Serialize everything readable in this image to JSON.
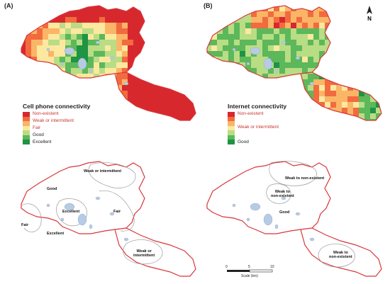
{
  "panels": {
    "a": {
      "label": "(A)"
    },
    "b": {
      "label": "(B)"
    }
  },
  "legend_cell": {
    "title": "Cell phone connectivity",
    "items": [
      "Non-existent",
      "Weak or intermittent",
      "Fair",
      "Good",
      "Excellent"
    ]
  },
  "legend_internet": {
    "title": "Internet connectivity",
    "items": [
      "Non-existent",
      "Weak or intermittent",
      "Good"
    ]
  },
  "cell_zones": {
    "weak_intermittent_top": "Weak or intermittent",
    "good": "Good",
    "excellent_center": "Excellent",
    "fair_right": "Fair",
    "fair_left": "Fair",
    "excellent_left": "Excellent",
    "weak_intermittent_se": "Weak or\nintermittent"
  },
  "internet_zones": {
    "weak_top": "Weak to non-existent",
    "weak_center": "Weak to\nnon-existent",
    "good": "Good",
    "weak_se": "Weak to\nnon-existent"
  },
  "north_arrow": {
    "label": "N"
  },
  "scale_bar": {
    "ticks": [
      "0",
      "5",
      "10"
    ],
    "label": "Scale (km)"
  },
  "colors": {
    "boundary": "#d9363a",
    "ramp": [
      "#d7282e",
      "#f26b3f",
      "#fbb567",
      "#fde8a0",
      "#b9dd84",
      "#5cb85a",
      "#1e9444"
    ],
    "water": "#b7cbe5",
    "zone_line": "#9a9a9a"
  }
}
